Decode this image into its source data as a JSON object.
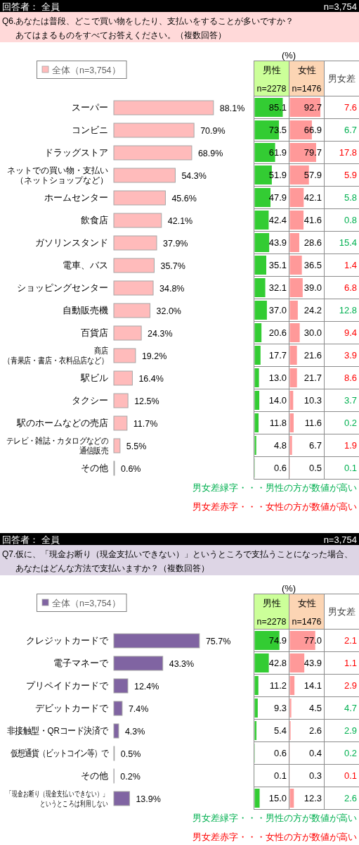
{
  "chart_data": [
    {
      "type": "bar",
      "orientation": "horizontal",
      "title": "Q6.あなたは普段、どこで買い物をしたり、支払いをすることが多いですか？",
      "subtitle": "あてはまるものをすべてお答えください。（複数回答）",
      "annotations": [
        "回答者： 全員",
        "n=3,754"
      ],
      "categories": [
        "スーパー",
        "コンビニ",
        "ドラッグストア",
        "ネットでの買い物・支払い（ネットショップなど）",
        "ホームセンター",
        "飲食店",
        "ガソリンスタンド",
        "電車、バス",
        "ショッピングセンター",
        "自動販売機",
        "百貨店",
        "商店（青果店・書店・衣料品店など）",
        "駅ビル",
        "タクシー",
        "駅のホームなどの売店",
        "テレビ・雑誌・カタログなどの通信販売",
        "その他"
      ],
      "series": [
        {
          "name": "全体（n=3,754）",
          "color": "#ffbbbb",
          "values": [
            88.1,
            70.9,
            68.9,
            54.3,
            45.6,
            42.1,
            37.9,
            35.7,
            34.8,
            32.0,
            24.3,
            19.2,
            16.4,
            12.5,
            11.7,
            5.5,
            0.6
          ],
          "value_labels": [
            "88.1%",
            "70.9%",
            "68.9%",
            "54.3%",
            "45.6%",
            "42.1%",
            "37.9%",
            "35.7%",
            "34.8%",
            "32.0%",
            "24.3%",
            "19.2%",
            "16.4%",
            "12.5%",
            "11.7%",
            "5.5%",
            "0.6%"
          ]
        }
      ],
      "tick_labels": "y",
      "legend": "top left"
    },
    {
      "type": "bar",
      "orientation": "horizontal",
      "title": "男性",
      "subtitle": "n=2278",
      "annotations": [
        "(%)"
      ],
      "categories": [
        null,
        null,
        null,
        null,
        null,
        null,
        null,
        null,
        null,
        null,
        null,
        null,
        null,
        null,
        null,
        null,
        null
      ],
      "values": [
        85.1,
        73.5,
        61.9,
        51.9,
        47.9,
        42.4,
        43.9,
        35.1,
        32.1,
        37.0,
        20.6,
        17.7,
        13.0,
        14.0,
        11.8,
        4.8,
        0.6
      ],
      "value_labels": [
        "85.1",
        "73.5",
        "61.9",
        "51.9",
        "47.9",
        "42.4",
        "43.9",
        "35.1",
        "32.1",
        "37.0",
        "20.6",
        "17.7",
        "13.0",
        "14.0",
        "11.8",
        "4.8",
        "0.6"
      ],
      "color": "#33cc33",
      "xlim": [
        0,
        100
      ],
      "tick_labels": false
    },
    {
      "type": "bar",
      "orientation": "horizontal",
      "title": "女性",
      "subtitle": "n=1476",
      "categories": [
        null,
        null,
        null,
        null,
        null,
        null,
        null,
        null,
        null,
        null,
        null,
        null,
        null,
        null,
        null,
        null,
        null
      ],
      "values": [
        92.7,
        66.9,
        79.7,
        57.9,
        42.1,
        41.6,
        28.6,
        36.5,
        39.0,
        24.2,
        30.0,
        21.6,
        21.7,
        10.3,
        11.6,
        6.7,
        0.5
      ],
      "value_labels": [
        "92.7",
        "66.9",
        "79.7",
        "57.9",
        "42.1",
        "41.6",
        "28.6",
        "36.5",
        "39.0",
        "24.2",
        "30.0",
        "21.6",
        "21.7",
        "10.3",
        "11.6",
        "6.7",
        "0.5"
      ],
      "color": "#ff9999",
      "xlim": [
        0,
        100
      ],
      "tick_labels": false
    },
    {
      "type": "other",
      "title": "男女差",
      "data_labels": true,
      "values": [
        7.6,
        6.7,
        17.8,
        5.9,
        5.8,
        0.8,
        15.4,
        1.4,
        6.8,
        12.8,
        9.4,
        3.9,
        8.6,
        3.7,
        0.2,
        1.9,
        0.1
      ],
      "colors": [
        "#ff0000",
        "#00b050",
        "#ff0000",
        "#ff0000",
        "#00b050",
        "#00b050",
        "#00b050",
        "#ff0000",
        "#ff0000",
        "#00b050",
        "#ff0000",
        "#ff0000",
        "#ff0000",
        "#00b050",
        "#00b050",
        "#ff0000",
        "#00b050"
      ]
    },
    {
      "type": "other",
      "annotations": [
        "男女差緑字・・・男性の方が数値が高い",
        "男女差赤字・・・女性の方が数値が高い"
      ],
      "colors": [
        "#00b050",
        "#ff0000"
      ]
    },
    {
      "type": "bar",
      "orientation": "horizontal",
      "title": "Q7.仮に、「現金お断り（現金支払いできない）」というところで支払うことになった場合、",
      "subtitle": "あなたはどんな方法で支払いますか？（複数回答）",
      "annotations": [
        "回答者： 全員",
        "n=3,754"
      ],
      "categories": [
        "クレジットカードで",
        "電子マネーで",
        "プリペイドカードで",
        "デビットカードで",
        "非接触型・QRコード決済で",
        "仮想通貨（ビットコイン等）で",
        "その他",
        "「現金お断り（現金支払いできない）」というところは利用しない"
      ],
      "series": [
        {
          "name": "全体（n=3,754）",
          "color": "#8064a2",
          "values": [
            75.7,
            43.3,
            12.4,
            7.4,
            4.3,
            0.5,
            0.2,
            13.9
          ],
          "value_labels": [
            "75.7%",
            "43.3%",
            "12.4%",
            "7.4%",
            "4.3%",
            "0.5%",
            "0.2%",
            "13.9%"
          ]
        }
      ],
      "tick_labels": "y",
      "legend": "top left"
    },
    {
      "type": "bar",
      "orientation": "horizontal",
      "title": "男性",
      "subtitle": "n=2278",
      "annotations": [
        "(%)"
      ],
      "categories": [
        null,
        null,
        null,
        null,
        null,
        null,
        null,
        null
      ],
      "values": [
        74.9,
        42.8,
        11.2,
        9.3,
        5.4,
        0.6,
        0.1,
        15.0
      ],
      "value_labels": [
        "74.9",
        "42.8",
        "11.2",
        "9.3",
        "5.4",
        "0.6",
        "0.1",
        "15.0"
      ],
      "color": "#33cc33",
      "xlim": [
        0,
        100
      ],
      "tick_labels": false
    },
    {
      "type": "bar",
      "orientation": "horizontal",
      "title": "女性",
      "subtitle": "n=1476",
      "categories": [
        null,
        null,
        null,
        null,
        null,
        null,
        null,
        null
      ],
      "values": [
        77.0,
        43.9,
        14.1,
        4.5,
        2.6,
        0.4,
        0.3,
        12.3
      ],
      "value_labels": [
        "77.0",
        "43.9",
        "14.1",
        "4.5",
        "2.6",
        "0.4",
        "0.3",
        "12.3"
      ],
      "color": "#ff9999",
      "xlim": [
        0,
        100
      ],
      "tick_labels": false
    },
    {
      "type": "other",
      "title": "男女差",
      "data_labels": true,
      "values": [
        2.1,
        1.1,
        2.9,
        4.7,
        2.9,
        0.2,
        0.1,
        2.6
      ],
      "colors": [
        "#ff0000",
        "#ff0000",
        "#ff0000",
        "#00b050",
        "#00b050",
        "#00b050",
        "#ff0000",
        "#00b050"
      ]
    },
    {
      "type": "other",
      "annotations": [
        "男女差緑字・・・男性の方が数値が高い",
        "男女差赤字・・・女性の方が数値が高い"
      ],
      "colors": [
        "#00b050",
        "#ff0000"
      ]
    }
  ]
}
